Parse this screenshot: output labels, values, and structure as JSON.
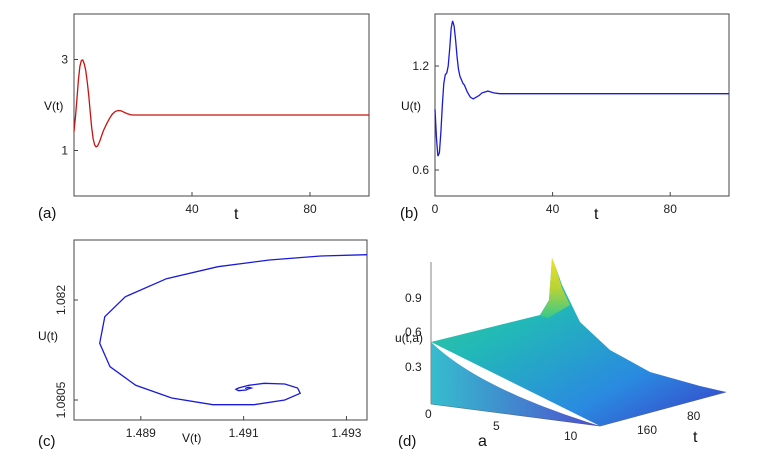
{
  "colors": {
    "red": "#cc1111",
    "blue": "#1a1adb",
    "axis": "#444444"
  },
  "chart_data": [
    {
      "panel_label": "(a)",
      "type": "line",
      "xlabel": "t",
      "ylabel": "V(t)",
      "xlim": [
        0,
        100
      ],
      "ylim": [
        0,
        4
      ],
      "xticks": [
        "40",
        "80"
      ],
      "yticks": [
        "1",
        "3"
      ],
      "series": [
        {
          "color": "#cc1111",
          "x": [
            0,
            0.5,
            1,
            1.5,
            2,
            2.5,
            3,
            3.5,
            4,
            4.5,
            5,
            5.5,
            6,
            6.5,
            7,
            7.5,
            8,
            8.5,
            9,
            9.5,
            10,
            11,
            12,
            13,
            14,
            15,
            16,
            17,
            18,
            19,
            20,
            22,
            24,
            26,
            28,
            30,
            35,
            40,
            50,
            60,
            80,
            100
          ],
          "y": [
            1.42,
            1.75,
            2.15,
            2.55,
            2.85,
            2.98,
            2.99,
            2.9,
            2.75,
            2.5,
            2.2,
            1.85,
            1.5,
            1.25,
            1.12,
            1.08,
            1.1,
            1.17,
            1.25,
            1.35,
            1.44,
            1.58,
            1.7,
            1.8,
            1.86,
            1.88,
            1.87,
            1.84,
            1.81,
            1.79,
            1.78,
            1.78,
            1.78,
            1.78,
            1.78,
            1.78,
            1.78,
            1.78,
            1.78,
            1.78,
            1.78,
            1.78
          ]
        }
      ]
    },
    {
      "panel_label": "(b)",
      "type": "line",
      "xlabel": "t",
      "ylabel": "U(t)",
      "xlim": [
        0,
        100
      ],
      "ylim": [
        0.45,
        1.5
      ],
      "xticks": [
        "0",
        "40",
        "80"
      ],
      "yticks": [
        "0.6",
        "1.2"
      ],
      "series": [
        {
          "color": "#1a1adb",
          "x": [
            0,
            0.5,
            1,
            1.5,
            2,
            2.5,
            3,
            3.5,
            4,
            4.5,
            5,
            5.5,
            6,
            6.5,
            7,
            7.5,
            8,
            8.5,
            9,
            9.5,
            10,
            11,
            12,
            13,
            14,
            15,
            16,
            17,
            18,
            19,
            20,
            22,
            24,
            26,
            28,
            30,
            35,
            40,
            50,
            60,
            80,
            100
          ],
          "y": [
            0.95,
            0.78,
            0.68,
            0.7,
            0.82,
            0.98,
            1.1,
            1.15,
            1.16,
            1.2,
            1.3,
            1.42,
            1.46,
            1.43,
            1.35,
            1.25,
            1.18,
            1.14,
            1.12,
            1.1,
            1.09,
            1.05,
            1.02,
            1.01,
            1.02,
            1.03,
            1.045,
            1.05,
            1.055,
            1.05,
            1.045,
            1.04,
            1.04,
            1.04,
            1.04,
            1.04,
            1.04,
            1.04,
            1.04,
            1.04,
            1.04,
            1.04
          ]
        }
      ]
    },
    {
      "panel_label": "(c)",
      "type": "line",
      "xlabel": "V(t)",
      "ylabel": "U(t)",
      "xlim": [
        1.4877,
        1.4934
      ],
      "ylim": [
        1.0802,
        1.0829
      ],
      "xticks": [
        "1.489",
        "1.491",
        "1.493"
      ],
      "yticks": [
        "1.0805",
        "1.082"
      ],
      "series": [
        {
          "color": "#1a1adb",
          "x": [
            1.4934,
            1.4925,
            1.4915,
            1.4905,
            1.4895,
            1.4887,
            1.4883,
            1.4882,
            1.4884,
            1.4889,
            1.4896,
            1.4904,
            1.4912,
            1.4918,
            1.4921,
            1.49205,
            1.4918,
            1.4914,
            1.4911,
            1.4909,
            1.49085,
            1.4909,
            1.49105,
            1.4911,
            1.49115,
            1.4911,
            1.49105,
            1.49103
          ],
          "y": [
            1.08268,
            1.08266,
            1.0826,
            1.0825,
            1.08232,
            1.08205,
            1.08175,
            1.08135,
            1.081,
            1.08072,
            1.08053,
            1.08043,
            1.08043,
            1.0805,
            1.0806,
            1.08068,
            1.08074,
            1.08075,
            1.08072,
            1.08068,
            1.08066,
            1.08064,
            1.08065,
            1.08067,
            1.08068,
            1.08069,
            1.08068,
            1.08067
          ]
        }
      ]
    },
    {
      "panel_label": "(d)",
      "type": "surface",
      "zlabel": "u(t,a)",
      "xlabel": "a",
      "ylabel": "t",
      "zticks": [
        "0.3",
        "0.6",
        "0.9"
      ],
      "a_ticks": [
        "0",
        "5",
        "10"
      ],
      "t_ticks": [
        "80",
        "160"
      ],
      "colormap": [
        "#3a2ec0",
        "#2a7de6",
        "#1fb6c8",
        "#36c98c",
        "#b9d337",
        "#f0e124"
      ]
    }
  ]
}
